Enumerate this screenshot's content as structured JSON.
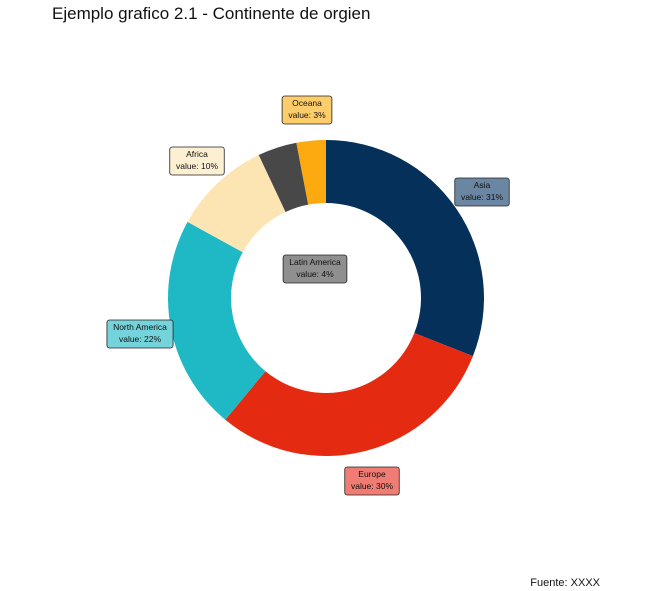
{
  "title": "Ejemplo grafico 2.1 - Continente de orgien",
  "caption": "Fuente: XXXX",
  "chart_data": {
    "type": "pie",
    "variant": "donut",
    "title": "Ejemplo grafico 2.1 - Continente de orgien",
    "caption": "Fuente: XXXX",
    "value_prefix": "value: ",
    "value_suffix": "%",
    "slices": [
      {
        "label": "Asia",
        "value": 31,
        "color": "#04305a",
        "label_fill": "#6b86a3"
      },
      {
        "label": "Europe",
        "value": 30,
        "color": "#e52a12",
        "label_fill": "#f07c73"
      },
      {
        "label": "North America",
        "value": 22,
        "color": "#1fb9c6",
        "label_fill": "#75d3db"
      },
      {
        "label": "Africa",
        "value": 10,
        "color": "#fce5b2",
        "label_fill": "#fdf0d2"
      },
      {
        "label": "Latin America",
        "value": 4,
        "color": "#484848",
        "label_fill": "#8f8f8f"
      },
      {
        "label": "Oceana",
        "value": 3,
        "color": "#fcaa0f",
        "label_fill": "#fdcd6c"
      }
    ],
    "legend": "none",
    "grid": false
  }
}
